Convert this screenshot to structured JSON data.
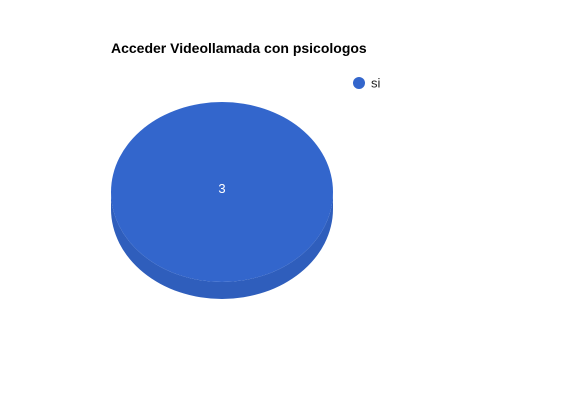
{
  "chart_data": {
    "type": "pie",
    "title": "Acceder Videollamada con psicologos",
    "categories": [
      "si"
    ],
    "values": [
      3
    ],
    "colors": [
      "#3366cc"
    ],
    "data_labels": [
      "3"
    ],
    "legend_position": "top-right",
    "style": "3d"
  }
}
